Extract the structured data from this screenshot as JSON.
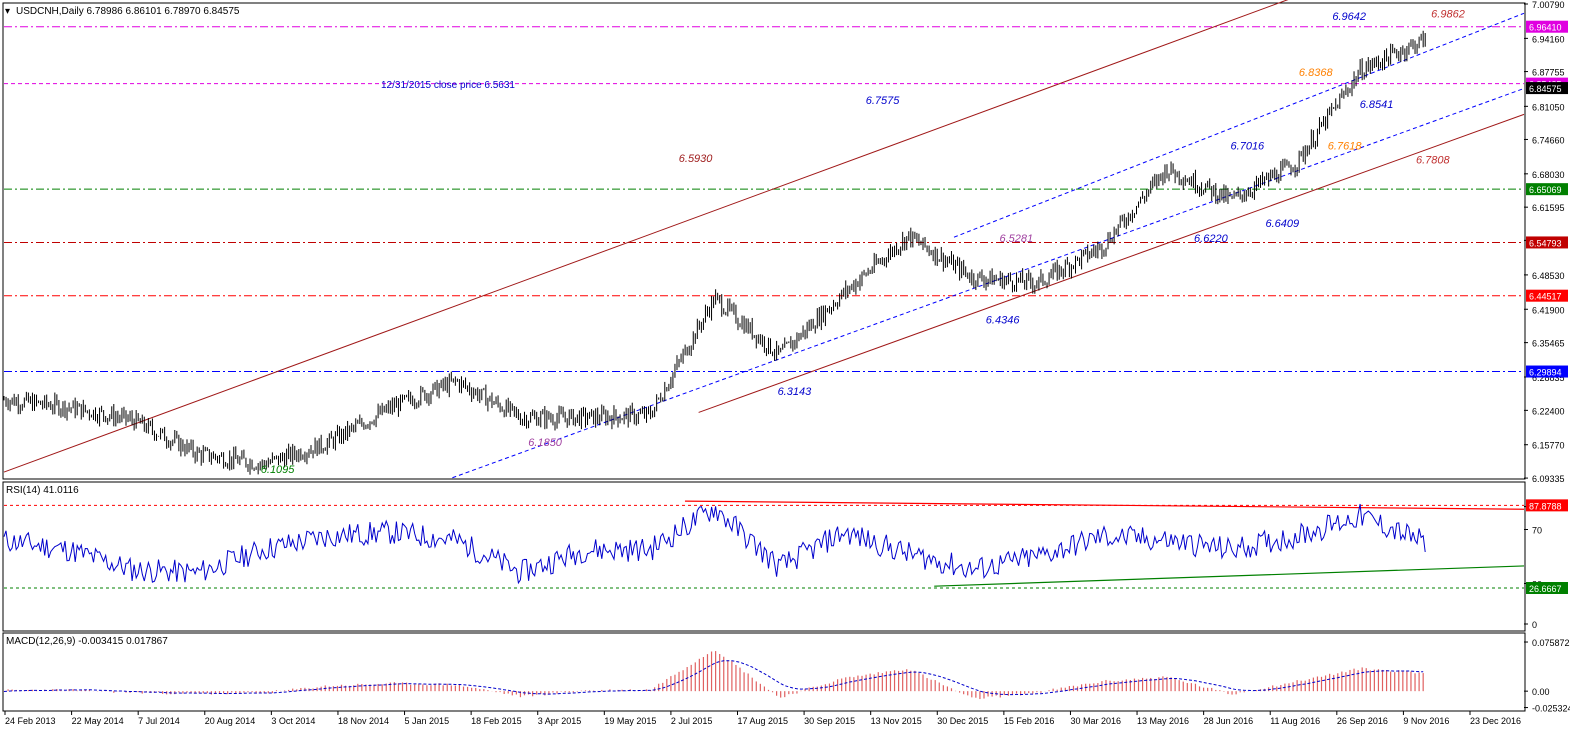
{
  "main": {
    "header": "USDCNH,Daily  6.78986 6.86101 6.78970 6.84575",
    "ylim": [
      6.0935,
      7.0079
    ],
    "y_ticks": [
      "7.00790",
      "6.94160",
      "6.87755",
      "6.81050",
      "6.74660",
      "6.68030",
      "6.61595",
      "6.55190",
      "6.48530",
      "6.41900",
      "6.35465",
      "6.28835",
      "6.22400",
      "6.15770",
      "6.09335"
    ],
    "hlines": [
      {
        "value": 6.9641,
        "label": "6.96410",
        "color": "#e000e0",
        "style": "dashdot"
      },
      {
        "value": 6.8543,
        "label": "6.85435",
        "color": "#e000e0",
        "style": "dash"
      },
      {
        "value": 6.8457,
        "label": "6.84575",
        "color": "#000000",
        "style": "none"
      },
      {
        "value": 6.6507,
        "label": "6.65069",
        "color": "#008000",
        "style": "dashdot"
      },
      {
        "value": 6.5479,
        "label": "6.54793",
        "color": "#c00000",
        "style": "dashdot"
      },
      {
        "value": 6.4452,
        "label": "6.44517",
        "color": "#ff0000",
        "style": "dashdot"
      },
      {
        "value": 6.2989,
        "label": "6.29894",
        "color": "#0000ff",
        "style": "dashdot"
      }
    ],
    "note": "12/31/2015 close price 6.5631",
    "annotations": [
      {
        "text": "6.1095",
        "x": 0.18,
        "y": 6.103,
        "color": "#008000"
      },
      {
        "text": "6.1850",
        "x": 0.356,
        "y": 6.155,
        "color": "#a040a0"
      },
      {
        "text": "6.3143",
        "x": 0.52,
        "y": 6.254,
        "color": "#0000cc"
      },
      {
        "text": "6.5930",
        "x": 0.455,
        "y": 6.703,
        "color": "#a02020"
      },
      {
        "text": "6.7575",
        "x": 0.578,
        "y": 6.815,
        "color": "#0000cc"
      },
      {
        "text": "6.4346",
        "x": 0.657,
        "y": 6.392,
        "color": "#0000cc"
      },
      {
        "text": "6.5281",
        "x": 0.666,
        "y": 6.549,
        "color": "#a040a0"
      },
      {
        "text": "6.6220",
        "x": 0.794,
        "y": 6.549,
        "color": "#0000cc"
      },
      {
        "text": "6.6409",
        "x": 0.841,
        "y": 6.578,
        "color": "#0000cc"
      },
      {
        "text": "6.7016",
        "x": 0.818,
        "y": 6.727,
        "color": "#0000cc"
      },
      {
        "text": "6.7618",
        "x": 0.882,
        "y": 6.727,
        "color": "#ff8000"
      },
      {
        "text": "6.8368",
        "x": 0.863,
        "y": 6.869,
        "color": "#ff8000"
      },
      {
        "text": "6.8541",
        "x": 0.903,
        "y": 6.807,
        "color": "#0000cc"
      },
      {
        "text": "6.9642",
        "x": 0.885,
        "y": 6.977,
        "color": "#0000cc"
      },
      {
        "text": "6.9862",
        "x": 0.95,
        "y": 6.982,
        "color": "#c03030"
      },
      {
        "text": "6.7808",
        "x": 0.94,
        "y": 6.7,
        "color": "#c03030"
      }
    ],
    "trendlines": [
      {
        "color": "#a01818",
        "style": "solid",
        "p1": [
          0.0,
          6.105
        ],
        "p2": [
          0.862,
          7.035
        ]
      },
      {
        "color": "#a01818",
        "style": "solid",
        "p1": [
          0.457,
          6.22
        ],
        "p2": [
          1.0,
          6.795
        ]
      },
      {
        "color": "#0000ff",
        "style": "dash",
        "p1": [
          0.295,
          6.094
        ],
        "p2": [
          1.0,
          6.845
        ]
      },
      {
        "color": "#0000ff",
        "style": "dash",
        "p1": [
          0.625,
          6.558
        ],
        "p2": [
          1.0,
          6.99
        ]
      }
    ]
  },
  "rsi": {
    "header": "RSI(14) 41.0116",
    "ylim": [
      0,
      100
    ],
    "levels": [
      {
        "value": 87.8788,
        "label": "87.8788",
        "color": "#ff0000"
      },
      {
        "value": 26.6667,
        "label": "26.6667",
        "color": "#008000"
      }
    ],
    "ticks": [
      "87",
      "70",
      "30",
      "0"
    ],
    "lines": [
      {
        "color": "#ff0000",
        "p1": [
          0.448,
          91
        ],
        "p2": [
          1.0,
          85
        ]
      },
      {
        "color": "#008000",
        "p1": [
          0.612,
          28
        ],
        "p2": [
          1.0,
          43
        ]
      }
    ]
  },
  "macd": {
    "header": "MACD(12,26,9) -0.003415 0.017867",
    "ylim": [
      -0.026,
      0.079
    ],
    "ticks": [
      "0.075872",
      "0.00",
      "-0.025324"
    ]
  },
  "x_labels": [
    "24 Feb 2013",
    "22 May 2014",
    "7 Jul 2014",
    "20 Aug 2014",
    "3 Oct 2014",
    "18 Nov 2014",
    "5 Jan 2015",
    "18 Feb 2015",
    "3 Apr 2015",
    "19 May 2015",
    "2 Jul 2015",
    "17 Aug 2015",
    "30 Sep 2015",
    "13 Nov 2015",
    "30 Dec 2015",
    "15 Feb 2016",
    "30 Mar 2016",
    "13 May 2016",
    "28 Jun 2016",
    "11 Aug 2016",
    "26 Sep 2016",
    "9 Nov 2016",
    "23 Dec 2016"
  ],
  "chart_data": {
    "type": "line",
    "title": "USDCNH,Daily",
    "x": [
      "24 Feb 2013",
      "22 May 2014",
      "7 Jul 2014",
      "20 Aug 2014",
      "3 Oct 2014",
      "18 Nov 2014",
      "5 Jan 2015",
      "18 Feb 2015",
      "3 Apr 2015",
      "19 May 2015",
      "2 Jul 2015",
      "17 Aug 2015",
      "30 Sep 2015",
      "13 Nov 2015",
      "30 Dec 2015",
      "15 Feb 2016",
      "30 Mar 2016",
      "13 May 2016",
      "28 Jun 2016",
      "11 Aug 2016",
      "26 Sep 2016",
      "9 Nov 2016",
      "23 Dec 2016"
    ],
    "series": [
      {
        "name": "USDCNH",
        "values": [
          6.245,
          6.23,
          6.205,
          6.14,
          6.12,
          6.16,
          6.23,
          6.28,
          6.21,
          6.21,
          6.215,
          6.44,
          6.33,
          6.45,
          6.56,
          6.48,
          6.47,
          6.54,
          6.69,
          6.63,
          6.7,
          6.88,
          6.94
        ]
      },
      {
        "name": "RSI(14)",
        "values": [
          62,
          55,
          40,
          38,
          55,
          65,
          68,
          62,
          38,
          55,
          55,
          86,
          42,
          68,
          52,
          40,
          50,
          65,
          62,
          55,
          65,
          80,
          60
        ]
      },
      {
        "name": "MACD(12,26,9)",
        "values": [
          0.001,
          0.002,
          -0.002,
          -0.004,
          -0.003,
          0.008,
          0.012,
          0.01,
          -0.008,
          0.001,
          0.002,
          0.065,
          -0.01,
          0.02,
          0.035,
          -0.012,
          -0.002,
          0.015,
          0.022,
          -0.005,
          0.015,
          0.035,
          0.028
        ]
      }
    ],
    "ylim": [
      6.0935,
      7.0079
    ]
  }
}
